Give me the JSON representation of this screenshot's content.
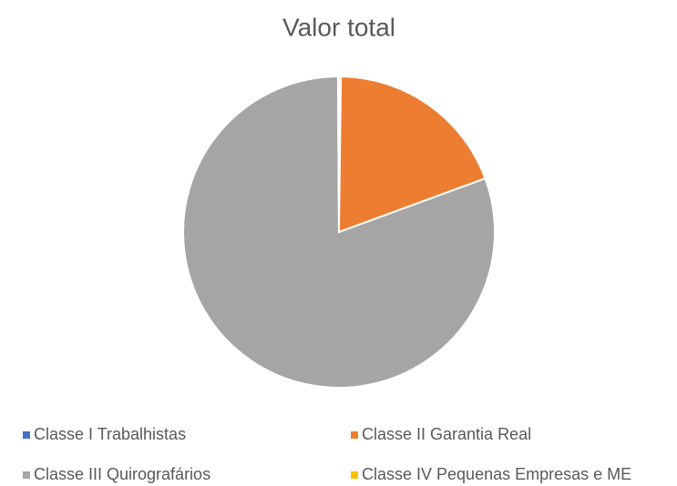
{
  "chart_data": {
    "type": "pie",
    "title": "Valor total",
    "categories": [
      "Classe I Trabalhistas",
      "Classe II Garantia Real",
      "Classe III Quirografários",
      "Classe IV Pequenas Empresas e ME"
    ],
    "values": [
      0.2,
      19.2,
      80.5,
      0.1
    ],
    "colors": [
      "#4472c4",
      "#ed7d31",
      "#a5a5a5",
      "#ffc000"
    ]
  }
}
